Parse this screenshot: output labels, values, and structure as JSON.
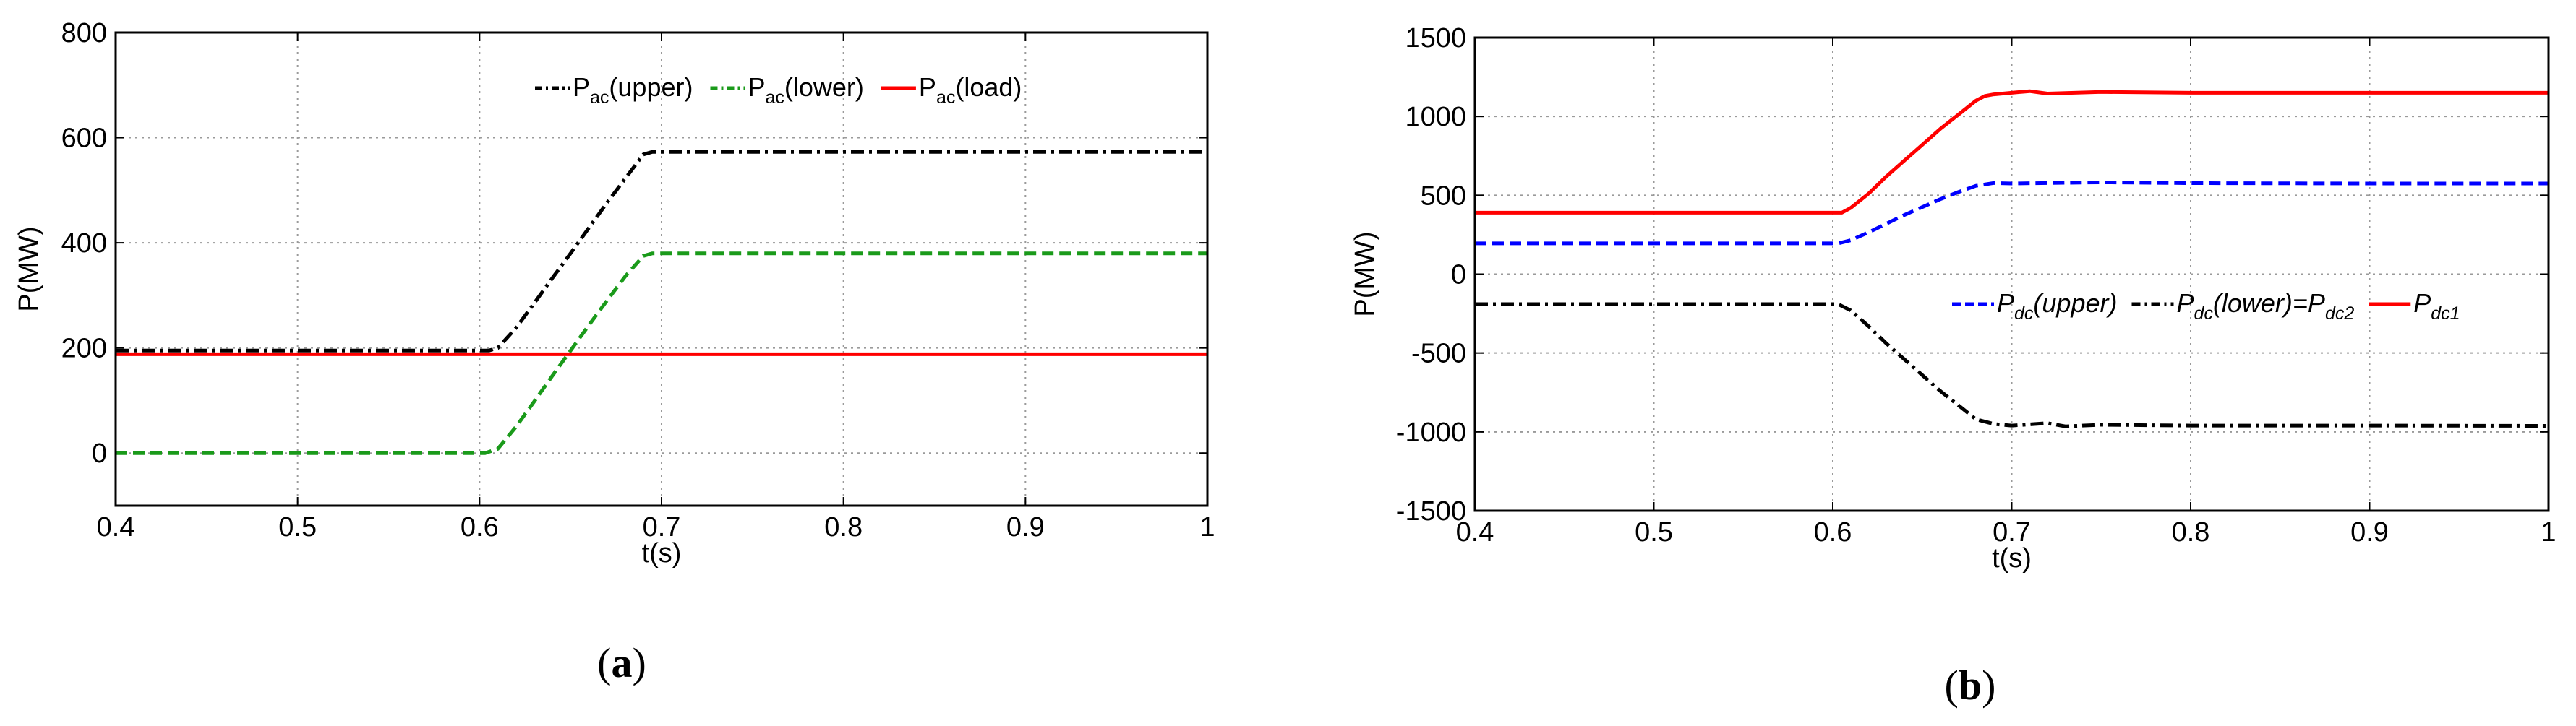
{
  "chart_data": [
    {
      "type": "line",
      "caption": "a",
      "xlabel": "t(s)",
      "ylabel": "P(MW)",
      "xlim": [
        0.4,
        1.0
      ],
      "ylim": [
        -100,
        800
      ],
      "xticks": [
        "0.4",
        "0.5",
        "0.6",
        "0.7",
        "0.8",
        "0.9",
        "1"
      ],
      "yticks": [
        "0",
        "200",
        "400",
        "600",
        "800"
      ],
      "grid": true,
      "legend_position": "top-right",
      "series": [
        {
          "legend": {
            "base": "P",
            "sub": "ac",
            "tail": "(upper)"
          },
          "color": "#000000",
          "dash": "dashdot",
          "x": [
            0.4,
            0.605,
            0.61,
            0.62,
            0.63,
            0.64,
            0.65,
            0.66,
            0.67,
            0.68,
            0.69,
            0.695,
            1.0
          ],
          "y": [
            195,
            195,
            200,
            238,
            285,
            333,
            380,
            428,
            476,
            522,
            568,
            573,
            573
          ]
        },
        {
          "legend": {
            "base": "P",
            "sub": "ac",
            "tail": "(lower)"
          },
          "color": "#1a9a1a",
          "dash": "dashed",
          "x": [
            0.4,
            0.603,
            0.61,
            0.62,
            0.63,
            0.64,
            0.65,
            0.66,
            0.67,
            0.68,
            0.69,
            0.695,
            1.0
          ],
          "y": [
            0,
            0,
            8,
            50,
            98,
            147,
            195,
            243,
            290,
            336,
            375,
            380,
            380
          ]
        },
        {
          "legend": {
            "base": "P",
            "sub": "ac",
            "tail": "(load)"
          },
          "color": "#ff0000",
          "dash": "solid",
          "x": [
            0.4,
            0.6,
            0.7,
            0.8,
            0.9,
            1.0
          ],
          "y": [
            188,
            188,
            188,
            188,
            188,
            188
          ]
        }
      ]
    },
    {
      "type": "line",
      "caption": "b",
      "xlabel": "t(s)",
      "ylabel": "P(MW)",
      "xlim": [
        0.4,
        1.0
      ],
      "ylim": [
        -1500,
        1500
      ],
      "xticks": [
        "0.4",
        "0.5",
        "0.6",
        "0.7",
        "0.8",
        "0.9",
        "1"
      ],
      "yticks": [
        "-1500",
        "-1000",
        "-500",
        "0",
        "500",
        "1000",
        "1500"
      ],
      "grid": true,
      "legend_position": "center-right",
      "series": [
        {
          "legend": {
            "base": "P",
            "sub": "dc",
            "tail": "(upper)",
            "sub2": ""
          },
          "color": "#0000ff",
          "dash": "dashed",
          "x": [
            0.4,
            0.603,
            0.61,
            0.62,
            0.63,
            0.64,
            0.65,
            0.66,
            0.67,
            0.68,
            0.69,
            0.7,
            0.75,
            0.8,
            0.9,
            1.0
          ],
          "y": [
            195,
            195,
            215,
            265,
            320,
            375,
            425,
            475,
            520,
            560,
            578,
            575,
            582,
            577,
            575,
            575
          ]
        },
        {
          "legend": {
            "base": "P",
            "sub": "dc",
            "tail": "(lower)=P",
            "sub2": "dc2"
          },
          "color": "#000000",
          "dash": "dashdot",
          "x": [
            0.4,
            0.603,
            0.61,
            0.62,
            0.63,
            0.64,
            0.65,
            0.66,
            0.67,
            0.68,
            0.69,
            0.7,
            0.72,
            0.73,
            0.75,
            0.8,
            0.9,
            1.0
          ],
          "y": [
            -190,
            -190,
            -230,
            -330,
            -440,
            -540,
            -640,
            -740,
            -830,
            -920,
            -950,
            -960,
            -945,
            -965,
            -955,
            -960,
            -960,
            -962
          ]
        },
        {
          "legend": {
            "base": "P",
            "sub": "dc1",
            "tail": "",
            "sub2": ""
          },
          "color": "#ff0000",
          "dash": "solid",
          "x": [
            0.4,
            0.605,
            0.61,
            0.62,
            0.63,
            0.64,
            0.65,
            0.66,
            0.67,
            0.68,
            0.685,
            0.69,
            0.7,
            0.71,
            0.72,
            0.75,
            0.8,
            0.9,
            1.0
          ],
          "y": [
            390,
            390,
            420,
            510,
            620,
            720,
            820,
            920,
            1010,
            1100,
            1130,
            1140,
            1150,
            1160,
            1145,
            1155,
            1150,
            1150,
            1150
          ]
        }
      ]
    }
  ]
}
